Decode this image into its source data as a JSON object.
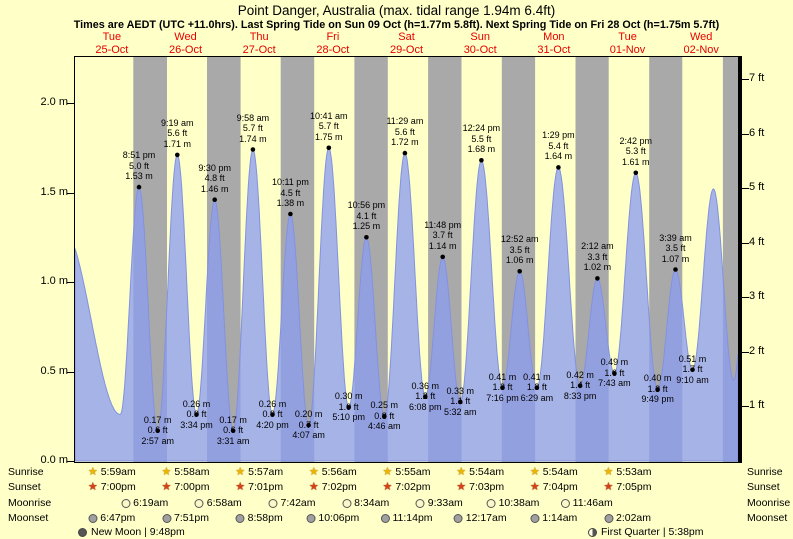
{
  "title": "Point Danger, Australia (max. tidal range 1.94m 6.4ft)",
  "subtitle": "Times are AEDT (UTC +11.0hrs). Last Spring Tide on Sun 09 Oct (h=1.77m 5.8ft). Next Spring Tide on Fri 28 Oct (h=1.75m 5.7ft)",
  "colors": {
    "background": "#ffffc8",
    "night_band": "#a9a9a9",
    "tide_fill": "rgba(141,157,240,0.78)",
    "tide_stroke": "#8292df",
    "day_label_red": "#e80000",
    "axis_line": "#000000",
    "sunrise_star": "#f0b400",
    "sunset_star": "#d84315",
    "moonrise_circle": "#fbf7c8",
    "moonset_circle": "#a0a0a0"
  },
  "chart_data": {
    "type": "area",
    "title": "Point Danger, Australia (max. tidal range 1.94m 6.4ft)",
    "xlabel": "days (Tue 25-Oct to Wed 02-Nov)",
    "ylabel_left": "meters",
    "ylabel_right": "feet",
    "ylim_m": [
      0.0,
      2.26
    ],
    "hours_total": 216,
    "num_days": 9,
    "grid": false,
    "days": [
      {
        "name": "Tue",
        "date": "25-Oct"
      },
      {
        "name": "Wed",
        "date": "26-Oct"
      },
      {
        "name": "Thu",
        "date": "27-Oct"
      },
      {
        "name": "Fri",
        "date": "28-Oct"
      },
      {
        "name": "Sat",
        "date": "29-Oct"
      },
      {
        "name": "Sun",
        "date": "30-Oct"
      },
      {
        "name": "Mon",
        "date": "31-Oct"
      },
      {
        "name": "Tue",
        "date": "01-Nov"
      },
      {
        "name": "Wed",
        "date": "02-Nov"
      }
    ],
    "y_axis_left": {
      "unit": "m",
      "ticks": [
        {
          "v": 0.0,
          "label": "0.0 m"
        },
        {
          "v": 0.5,
          "label": "0.5 m"
        },
        {
          "v": 1.0,
          "label": "1.0 m"
        },
        {
          "v": 1.5,
          "label": "1.5 m"
        },
        {
          "v": 2.0,
          "label": "2.0 m"
        }
      ]
    },
    "y_axis_right": {
      "unit": "ft",
      "ticks": [
        {
          "v": 1,
          "label": "1 ft"
        },
        {
          "v": 2,
          "label": "2 ft"
        },
        {
          "v": 3,
          "label": "3 ft"
        },
        {
          "v": 4,
          "label": "4 ft"
        },
        {
          "v": 5,
          "label": "5 ft"
        },
        {
          "v": 6,
          "label": "6 ft"
        },
        {
          "v": 7,
          "label": "7 ft"
        }
      ]
    },
    "night_bands_hours": [
      [
        19.0,
        29.97
      ],
      [
        43.0,
        53.95
      ],
      [
        67.02,
        77.93
      ],
      [
        91.03,
        101.92
      ],
      [
        115.03,
        125.9
      ],
      [
        139.05,
        149.9
      ],
      [
        163.07,
        173.88
      ],
      [
        187.08,
        197.87
      ],
      [
        211.08,
        216.0
      ]
    ],
    "tide_extremes": [
      {
        "t": -4.0,
        "h": 1.3,
        "kind": "anchor"
      },
      {
        "t": 14.75,
        "h": 0.26,
        "kind": "anchor"
      },
      {
        "t": 20.85,
        "h": 1.53,
        "kind": "high",
        "lines": [
          "8:51 pm",
          "5.0 ft",
          "1.53 m"
        ]
      },
      {
        "t": 26.95,
        "h": 0.17,
        "kind": "low",
        "lines": [
          "0.17 m",
          "0.6 ft",
          "2:57 am"
        ]
      },
      {
        "t": 33.32,
        "h": 1.71,
        "kind": "high",
        "lines": [
          "9:19 am",
          "5.6 ft",
          "1.71 m"
        ]
      },
      {
        "t": 39.57,
        "h": 0.26,
        "kind": "low",
        "lines": [
          "0.26 m",
          "0.9 ft",
          "3:34 pm"
        ]
      },
      {
        "t": 45.5,
        "h": 1.46,
        "kind": "high",
        "lines": [
          "9:30 pm",
          "4.8 ft",
          "1.46 m"
        ]
      },
      {
        "t": 51.52,
        "h": 0.17,
        "kind": "low",
        "lines": [
          "0.17 m",
          "0.6 ft",
          "3:31 am"
        ]
      },
      {
        "t": 57.97,
        "h": 1.74,
        "kind": "high",
        "lines": [
          "9:58 am",
          "5.7 ft",
          "1.74 m"
        ]
      },
      {
        "t": 64.33,
        "h": 0.26,
        "kind": "low",
        "lines": [
          "0.26 m",
          "0.9 ft",
          "4:20 pm"
        ]
      },
      {
        "t": 70.18,
        "h": 1.38,
        "kind": "high",
        "lines": [
          "10:11 pm",
          "4.5 ft",
          "1.38 m"
        ]
      },
      {
        "t": 76.12,
        "h": 0.2,
        "kind": "low",
        "lines": [
          "0.20 m",
          "0.7 ft",
          "4:07 am"
        ]
      },
      {
        "t": 82.68,
        "h": 1.75,
        "kind": "high",
        "lines": [
          "10:41 am",
          "5.7 ft",
          "1.75 m"
        ]
      },
      {
        "t": 89.17,
        "h": 0.3,
        "kind": "low",
        "lines": [
          "0.30 m",
          "1.0 ft",
          "5:10 pm"
        ]
      },
      {
        "t": 94.93,
        "h": 1.25,
        "kind": "high",
        "lines": [
          "10:56 pm",
          "4.1 ft",
          "1.25 m"
        ]
      },
      {
        "t": 100.77,
        "h": 0.25,
        "kind": "low",
        "lines": [
          "0.25 m",
          "0.8 ft",
          "4:46 am"
        ]
      },
      {
        "t": 107.48,
        "h": 1.72,
        "kind": "high",
        "lines": [
          "11:29 am",
          "5.6 ft",
          "1.72 m"
        ]
      },
      {
        "t": 114.13,
        "h": 0.36,
        "kind": "low",
        "lines": [
          "0.36 m",
          "1.2 ft",
          "6:08 pm"
        ]
      },
      {
        "t": 119.8,
        "h": 1.14,
        "kind": "high",
        "lines": [
          "11:48 pm",
          "3.7 ft",
          "1.14 m"
        ]
      },
      {
        "t": 125.53,
        "h": 0.33,
        "kind": "low",
        "lines": [
          "0.33 m",
          "1.1 ft",
          "5:32 am"
        ]
      },
      {
        "t": 132.4,
        "h": 1.68,
        "kind": "high",
        "lines": [
          "12:24 pm",
          "5.5 ft",
          "1.68 m"
        ]
      },
      {
        "t": 139.27,
        "h": 0.41,
        "kind": "low",
        "lines": [
          "0.41 m",
          "1.3 ft",
          "7:16 pm"
        ]
      },
      {
        "t": 144.87,
        "h": 1.06,
        "kind": "high",
        "lines": [
          "12:52 am",
          "3.5 ft",
          "1.06 m"
        ]
      },
      {
        "t": 150.48,
        "h": 0.41,
        "kind": "low",
        "lines": [
          "0.41 m",
          "1.3 ft",
          "6:29 am"
        ]
      },
      {
        "t": 157.48,
        "h": 1.64,
        "kind": "high",
        "lines": [
          "1:29 pm",
          "5.4 ft",
          "1.64 m"
        ]
      },
      {
        "t": 164.55,
        "h": 0.42,
        "kind": "low",
        "lines": [
          "0.42 m",
          "1.4 ft",
          "8:33 pm"
        ]
      },
      {
        "t": 170.2,
        "h": 1.02,
        "kind": "high",
        "lines": [
          "2:12 am",
          "3.3 ft",
          "1.02 m"
        ]
      },
      {
        "t": 175.72,
        "h": 0.49,
        "kind": "low",
        "lines": [
          "0.49 m",
          "1.6 ft",
          "7:43 am"
        ]
      },
      {
        "t": 182.7,
        "h": 1.61,
        "kind": "high",
        "lines": [
          "2:42 pm",
          "5.3 ft",
          "1.61 m"
        ]
      },
      {
        "t": 189.82,
        "h": 0.4,
        "kind": "low",
        "lines": [
          "0.40 m",
          "1.3 ft",
          "9:49 pm"
        ]
      },
      {
        "t": 195.65,
        "h": 1.07,
        "kind": "high",
        "lines": [
          "3:39 am",
          "3.5 ft",
          "1.07 m"
        ]
      },
      {
        "t": 201.17,
        "h": 0.51,
        "kind": "low",
        "lines": [
          "0.51 m",
          "1.7 ft",
          "9:10 am"
        ]
      },
      {
        "t": 208.0,
        "h": 1.52,
        "kind": "anchor"
      },
      {
        "t": 214.6,
        "h": 0.45,
        "kind": "anchor"
      },
      {
        "t": 220.0,
        "h": 1.4,
        "kind": "anchor"
      }
    ]
  },
  "almanac": {
    "rows": [
      {
        "id": "sunrise",
        "label": "Sunrise",
        "icon": "sunrise-star-icon",
        "anchor": "center",
        "start_day": 0,
        "times": [
          "5:59am",
          "5:58am",
          "5:57am",
          "5:56am",
          "5:55am",
          "5:54am",
          "5:54am",
          "5:53am"
        ]
      },
      {
        "id": "sunset",
        "label": "Sunset",
        "icon": "sunset-star-icon",
        "anchor": "center",
        "start_day": 0,
        "times": [
          "7:00pm",
          "7:00pm",
          "7:01pm",
          "7:02pm",
          "7:02pm",
          "7:03pm",
          "7:04pm",
          "7:05pm"
        ]
      },
      {
        "id": "moonrise",
        "label": "Moonrise",
        "icon": "moonrise-moon-icon",
        "anchor": "boundary",
        "start_day": 1,
        "times": [
          "6:19am",
          "6:58am",
          "7:42am",
          "8:34am",
          "9:33am",
          "10:38am",
          "11:46am"
        ]
      },
      {
        "id": "moonset",
        "label": "Moonset",
        "icon": "moonset-moon-icon",
        "anchor": "center",
        "start_day": 0,
        "times": [
          "6:47pm",
          "7:51pm",
          "8:58pm",
          "10:06pm",
          "11:14pm",
          "12:17am",
          "1:14am",
          "2:02am"
        ]
      }
    ],
    "phases": [
      {
        "id": "new-moon",
        "label": "New Moon | 9:48pm"
      },
      {
        "id": "first-quarter",
        "label": "First Quarter | 5:38pm"
      }
    ]
  }
}
